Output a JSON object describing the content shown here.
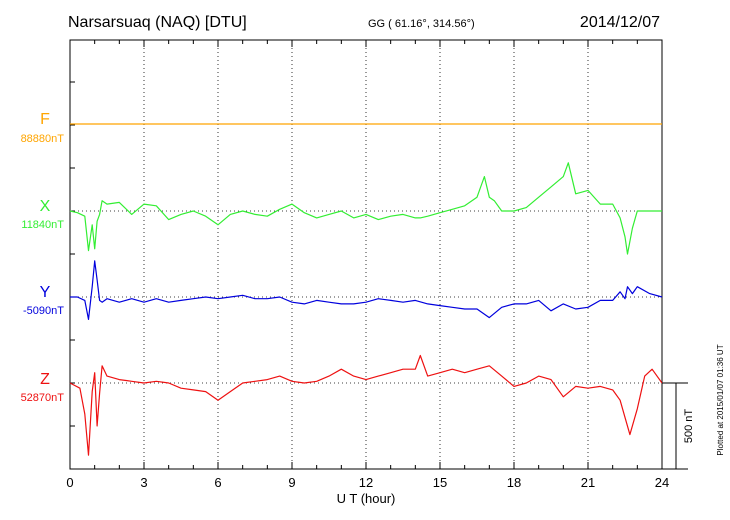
{
  "header": {
    "station": "Narsarsuaq (NAQ)  [DTU]",
    "coords": "GG ( 61.16°, 314.56°)",
    "date": "2014/12/07"
  },
  "footer_note": "Plotted at 2015/01/07 01:36 UT",
  "scale_label": "500 nT",
  "colors": {
    "F": "#ffa500",
    "X": "#33ee33",
    "Y": "#0000dd",
    "Z": "#ee1111",
    "axis": "#000000"
  },
  "chart_data": {
    "type": "line",
    "title": "",
    "xlabel": "U T (hour)",
    "xlim": [
      0,
      24
    ],
    "x_ticks": [
      "0",
      "3",
      "6",
      "9",
      "12",
      "15",
      "18",
      "21",
      "24"
    ],
    "grid": true,
    "scale_nT": 500,
    "series": [
      {
        "name": "F",
        "baseline_label": "88880nT",
        "x": [
          0,
          24
        ],
        "values": [
          0,
          0
        ]
      },
      {
        "name": "X",
        "baseline_label": "11840nT",
        "x": [
          0,
          0.3,
          0.6,
          0.75,
          0.9,
          1.0,
          1.1,
          1.2,
          1.3,
          1.5,
          2,
          2.5,
          3,
          3.5,
          4,
          4.5,
          5,
          5.5,
          6,
          6.5,
          7,
          7.5,
          8,
          8.5,
          9,
          9.5,
          10,
          10.5,
          11,
          11.5,
          12,
          12.5,
          13,
          13.5,
          14,
          14.2,
          14.5,
          15,
          15.5,
          16,
          16.5,
          16.8,
          17,
          17.2,
          17.5,
          18,
          18.5,
          19,
          19.5,
          20,
          20.2,
          20.5,
          21,
          21.5,
          22,
          22.3,
          22.5,
          22.6,
          22.8,
          23,
          23.5,
          24
        ],
        "values": [
          0,
          -10,
          -30,
          -230,
          -80,
          -220,
          -60,
          -20,
          60,
          40,
          50,
          -20,
          40,
          30,
          -50,
          -20,
          0,
          -30,
          -80,
          -20,
          0,
          -20,
          -30,
          10,
          40,
          -10,
          -40,
          -20,
          0,
          -40,
          -20,
          -50,
          -30,
          -20,
          -40,
          -40,
          -30,
          -10,
          10,
          30,
          80,
          200,
          80,
          60,
          0,
          0,
          20,
          80,
          140,
          200,
          280,
          100,
          120,
          40,
          40,
          -40,
          -150,
          -250,
          -100,
          0,
          0,
          0
        ]
      },
      {
        "name": "Y",
        "baseline_label": "-5090nT",
        "x": [
          0,
          0.3,
          0.6,
          0.75,
          0.9,
          1.0,
          1.1,
          1.2,
          1.3,
          1.5,
          2,
          2.5,
          3,
          3.5,
          4,
          4.5,
          5,
          5.5,
          6,
          6.5,
          7,
          7.5,
          8,
          8.5,
          9,
          9.5,
          10,
          10.5,
          11,
          11.5,
          12,
          12.5,
          13,
          13.5,
          14,
          14.5,
          15,
          15.5,
          16,
          16.5,
          17,
          17.5,
          18,
          18.5,
          19,
          19.5,
          20,
          20.5,
          21,
          21.5,
          22,
          22.3,
          22.5,
          22.6,
          22.8,
          23,
          23.5,
          24
        ],
        "values": [
          0,
          0,
          -20,
          -130,
          60,
          210,
          100,
          -20,
          -30,
          -10,
          -30,
          -10,
          -30,
          -10,
          -30,
          -20,
          -10,
          0,
          -10,
          0,
          10,
          -10,
          -10,
          0,
          -30,
          -40,
          -20,
          -30,
          -40,
          -40,
          -30,
          -10,
          -20,
          -30,
          -20,
          -40,
          -50,
          -60,
          -70,
          -70,
          -120,
          -60,
          -40,
          -40,
          -20,
          -80,
          -40,
          -70,
          -60,
          -20,
          -20,
          30,
          -10,
          60,
          20,
          60,
          20,
          0
        ]
      },
      {
        "name": "Z",
        "baseline_label": "52870nT",
        "x": [
          0,
          0.4,
          0.6,
          0.75,
          0.9,
          1.0,
          1.1,
          1.2,
          1.3,
          1.5,
          2,
          2.5,
          3,
          3.5,
          4,
          4.5,
          5,
          5.5,
          6,
          6.5,
          7,
          7.5,
          8,
          8.5,
          9,
          9.5,
          10,
          10.5,
          11,
          11.5,
          12,
          12.5,
          13,
          13.5,
          14,
          14.2,
          14.5,
          15,
          15.5,
          16,
          16.5,
          17,
          17.5,
          18,
          18.5,
          19,
          19.5,
          20,
          20.5,
          21,
          21.5,
          22,
          22.3,
          22.5,
          22.7,
          23,
          23.3,
          23.6,
          24
        ],
        "values": [
          0,
          -30,
          -180,
          -420,
          -50,
          60,
          -250,
          -60,
          100,
          40,
          20,
          10,
          0,
          10,
          0,
          -30,
          -40,
          -50,
          -100,
          -50,
          0,
          10,
          20,
          40,
          10,
          0,
          10,
          40,
          80,
          40,
          20,
          40,
          60,
          80,
          80,
          160,
          40,
          60,
          80,
          60,
          80,
          100,
          40,
          -20,
          0,
          40,
          20,
          -80,
          -20,
          -30,
          -20,
          -40,
          -100,
          -200,
          -300,
          -150,
          40,
          80,
          0
        ]
      }
    ]
  }
}
